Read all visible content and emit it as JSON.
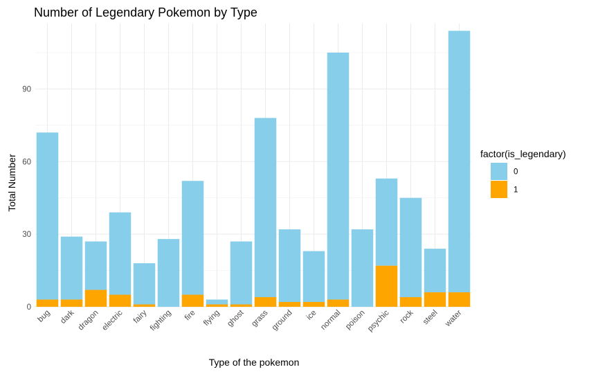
{
  "chart_data": {
    "type": "bar",
    "stacked": true,
    "title": "Number of Legendary Pokemon by Type",
    "xlabel": "Type of the pokemon",
    "ylabel": "Total Number",
    "ylim": [
      0,
      117
    ],
    "yticks": [
      0,
      30,
      60,
      90
    ],
    "grid": true,
    "legend": {
      "title": "factor(is_legendary)",
      "position": "right"
    },
    "categories": [
      "bug",
      "dark",
      "dragon",
      "electric",
      "fairy",
      "fighting",
      "fire",
      "flying",
      "ghost",
      "grass",
      "ground",
      "ice",
      "normal",
      "poison",
      "psychic",
      "rock",
      "steel",
      "water"
    ],
    "series": [
      {
        "name": "0",
        "color": "#87CEEB",
        "values": [
          69,
          26,
          20,
          34,
          17,
          28,
          47,
          2,
          26,
          74,
          30,
          21,
          102,
          32,
          36,
          41,
          18,
          108
        ]
      },
      {
        "name": "1",
        "color": "#FFA500",
        "values": [
          3,
          3,
          7,
          5,
          1,
          0,
          5,
          1,
          1,
          4,
          2,
          2,
          3,
          0,
          17,
          4,
          6,
          6
        ]
      }
    ]
  }
}
